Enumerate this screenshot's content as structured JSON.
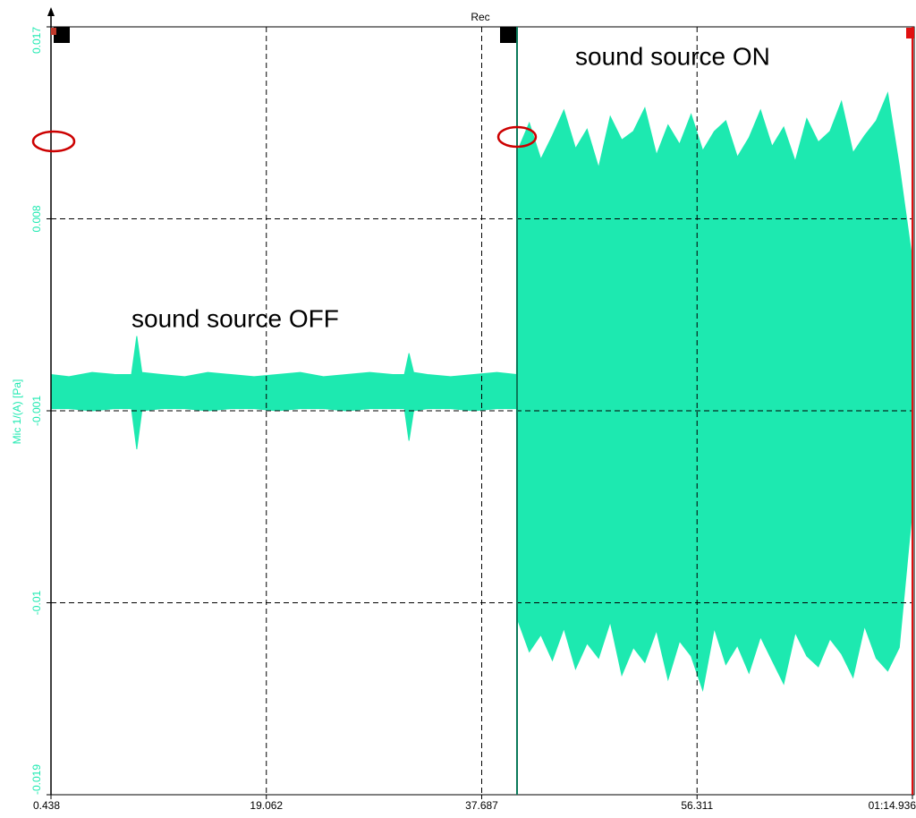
{
  "chart_data": {
    "type": "band",
    "title": "Rec",
    "y_label": "Mic 1/(A) [Pa]",
    "annotations": [
      "sound source OFF",
      "sound source ON"
    ],
    "xlim": [
      0.438,
      74.936
    ],
    "xticks": [
      0.438,
      19.062,
      37.687,
      56.311,
      {
        "value": 74.936,
        "label": "01:14.936"
      }
    ],
    "ylim": [
      -0.019,
      0.017
    ],
    "yticks": [
      0.017,
      0.008,
      -0.001,
      -0.01,
      -0.019
    ],
    "grid": true,
    "series": [
      {
        "name": "Mic 1/(A) [Pa]",
        "color": "#1de9b0",
        "x": [
          0.438,
          2,
          4,
          6,
          7.4,
          7.86,
          8.3,
          10,
          12,
          14,
          16,
          18,
          20,
          22,
          24,
          26,
          28,
          30,
          31,
          31.4,
          31.8,
          33,
          35,
          37,
          39,
          40.7,
          40.8,
          41.8,
          42.8,
          43.8,
          44.8,
          45.8,
          46.8,
          47.8,
          48.8,
          49.8,
          50.8,
          51.8,
          52.8,
          53.8,
          54.8,
          55.8,
          56.8,
          57.8,
          58.8,
          59.8,
          60.8,
          61.8,
          62.8,
          63.8,
          64.8,
          65.8,
          66.8,
          67.8,
          68.8,
          69.8,
          70.8,
          71.8,
          72.8,
          73.8,
          74.9
        ],
        "high": [
          0.0007,
          0.0006,
          0.0008,
          0.0007,
          0.0007,
          0.0025,
          0.0008,
          0.0007,
          0.0006,
          0.0008,
          0.0007,
          0.0006,
          0.0007,
          0.0008,
          0.0006,
          0.0007,
          0.0008,
          0.0007,
          0.0007,
          0.0017,
          0.0008,
          0.0007,
          0.0006,
          0.0007,
          0.0008,
          0.0007,
          0.0112,
          0.0125,
          0.0108,
          0.0119,
          0.0131,
          0.0113,
          0.0122,
          0.0104,
          0.0128,
          0.0117,
          0.0121,
          0.0132,
          0.011,
          0.0124,
          0.0115,
          0.0129,
          0.0112,
          0.0121,
          0.0126,
          0.0109,
          0.0118,
          0.0131,
          0.0114,
          0.0123,
          0.0107,
          0.0127,
          0.0116,
          0.0121,
          0.0135,
          0.0111,
          0.0119,
          0.0126,
          0.0139,
          0.0105,
          0.0062
        ],
        "low": [
          -0.0009,
          -0.0009,
          -0.001,
          -0.0009,
          -0.0009,
          -0.0028,
          -0.001,
          -0.0009,
          -0.0009,
          -0.001,
          -0.0009,
          -0.0009,
          -0.001,
          -0.0009,
          -0.0009,
          -0.001,
          -0.0009,
          -0.0009,
          -0.0009,
          -0.0024,
          -0.001,
          -0.0009,
          -0.0009,
          -0.001,
          -0.0009,
          -0.0009,
          -0.0108,
          -0.0123,
          -0.0115,
          -0.0127,
          -0.0112,
          -0.0131,
          -0.0119,
          -0.0126,
          -0.0109,
          -0.0134,
          -0.0121,
          -0.0128,
          -0.0113,
          -0.0136,
          -0.0118,
          -0.0125,
          -0.0141,
          -0.0112,
          -0.0129,
          -0.012,
          -0.0133,
          -0.0116,
          -0.0127,
          -0.0138,
          -0.0114,
          -0.0125,
          -0.013,
          -0.0117,
          -0.0124,
          -0.0135,
          -0.0111,
          -0.0126,
          -0.0132,
          -0.0121,
          -0.0058
        ]
      }
    ]
  }
}
